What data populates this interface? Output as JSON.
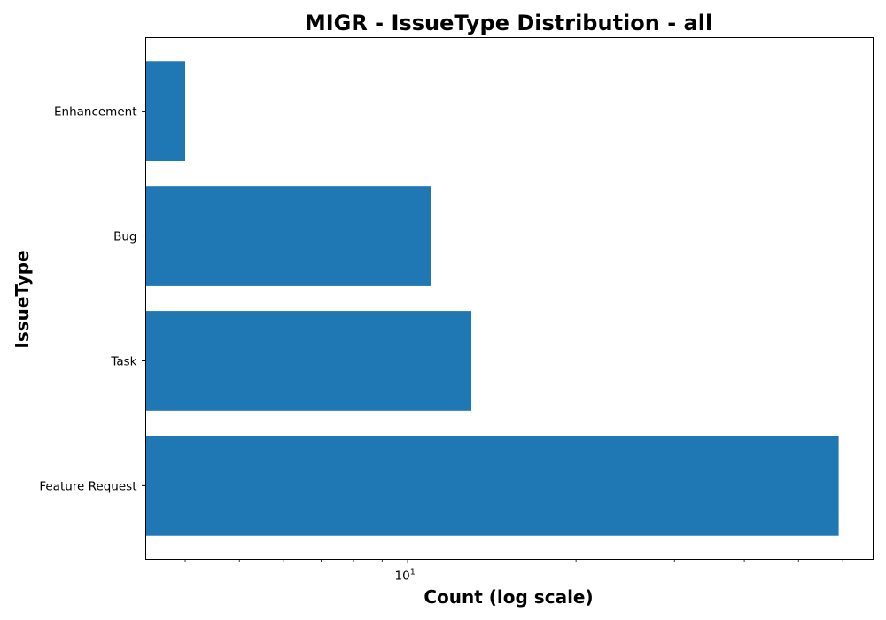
{
  "chart_data": {
    "type": "bar",
    "orientation": "horizontal",
    "title": "MIGR - IssueType Distribution - all",
    "xlabel": "Count (log scale)",
    "ylabel": "IssueType",
    "x_scale": "log",
    "xlim": [
      3.4,
      68
    ],
    "categories": [
      "Enhancement",
      "Bug",
      "Task",
      "Feature Request"
    ],
    "values": [
      4,
      11,
      13,
      59
    ],
    "x_major_ticks": [
      {
        "value": 10,
        "base": "10",
        "exponent": "1"
      }
    ],
    "x_minor_ticks": [
      4,
      5,
      6,
      7,
      8,
      9,
      20,
      30,
      40,
      50,
      60
    ],
    "bar_color": "#1f77b4",
    "grid": false,
    "legend": "none"
  }
}
